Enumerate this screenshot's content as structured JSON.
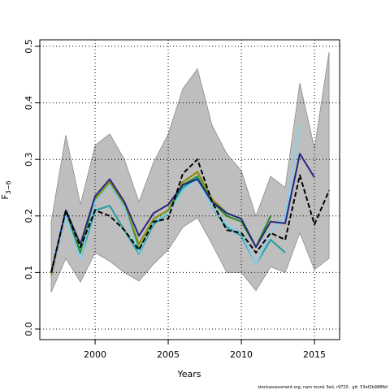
{
  "chart_data": {
    "type": "line",
    "xlabel": "Years",
    "ylabel": {
      "main": "F",
      "sub": "3−6"
    },
    "footer": "stockassessment.org, nam monk 3ed, r9720 , git: 53ef2b988fbf",
    "x": [
      1997,
      1998,
      1999,
      2000,
      2001,
      2002,
      2003,
      2004,
      2005,
      2006,
      2007,
      2008,
      2009,
      2010,
      2011,
      2012,
      2013,
      2014,
      2015,
      2016
    ],
    "band": {
      "color": "#bebebe",
      "upper": [
        0.19,
        0.343,
        0.22,
        0.325,
        0.345,
        0.3,
        0.225,
        0.295,
        0.345,
        0.425,
        0.46,
        0.36,
        0.31,
        0.28,
        0.2,
        0.27,
        0.25,
        0.435,
        0.32,
        0.49
      ],
      "lower": [
        0.065,
        0.125,
        0.083,
        0.135,
        0.12,
        0.1,
        0.085,
        0.115,
        0.14,
        0.18,
        0.197,
        0.15,
        0.1,
        0.1,
        0.068,
        0.11,
        0.1,
        0.17,
        0.105,
        0.125
      ]
    },
    "series": [
      {
        "color": "#8b8b00",
        "values": [
          0.095,
          0.205,
          0.135,
          0.23,
          0.26,
          0.22,
          0.15,
          0.195,
          0.21,
          0.26,
          0.278,
          0.23,
          0.205,
          0.195,
          null,
          null,
          null,
          null,
          null,
          null
        ]
      },
      {
        "color": "#228b22",
        "values": [
          0.1,
          0.205,
          0.135,
          0.225,
          0.255,
          0.215,
          0.14,
          0.19,
          0.205,
          0.255,
          0.27,
          0.225,
          0.2,
          0.19,
          0.145,
          0.2,
          null,
          null,
          null,
          null
        ]
      },
      {
        "color": "#20a0a0",
        "values": [
          0.1,
          0.2,
          0.125,
          0.21,
          0.218,
          0.175,
          0.133,
          0.185,
          0.205,
          0.25,
          0.268,
          0.215,
          0.18,
          0.165,
          0.115,
          0.158,
          0.135,
          null,
          null,
          null
        ]
      },
      {
        "color": "#87ceeb",
        "values": [
          0.1,
          0.2,
          0.125,
          0.225,
          0.255,
          0.215,
          0.135,
          0.19,
          0.205,
          0.245,
          0.265,
          0.215,
          0.185,
          0.17,
          0.115,
          0.17,
          0.2,
          0.36,
          null,
          null
        ]
      },
      {
        "color": "#262680",
        "values": [
          0.1,
          0.21,
          0.15,
          0.235,
          0.265,
          0.225,
          0.165,
          0.205,
          0.22,
          0.255,
          0.265,
          0.225,
          0.205,
          0.195,
          0.145,
          0.19,
          0.187,
          0.31,
          0.268,
          null
        ]
      },
      {
        "color": "#000000",
        "dashed": true,
        "values": [
          0.1,
          0.21,
          0.145,
          0.21,
          0.2,
          0.175,
          0.14,
          0.19,
          0.195,
          0.275,
          0.3,
          0.225,
          0.175,
          0.17,
          0.135,
          0.17,
          0.158,
          0.272,
          0.185,
          0.245
        ]
      }
    ],
    "xlim": [
      1996.22,
      2016.72
    ],
    "ylim": [
      -0.0187,
      0.5115
    ],
    "xticks": [
      2000,
      2005,
      2010,
      2015
    ],
    "yticks": [
      {
        "value": 0,
        "label": "0.0"
      },
      0.1,
      0.2,
      0.3,
      0.4,
      0.5
    ],
    "grid": true
  }
}
